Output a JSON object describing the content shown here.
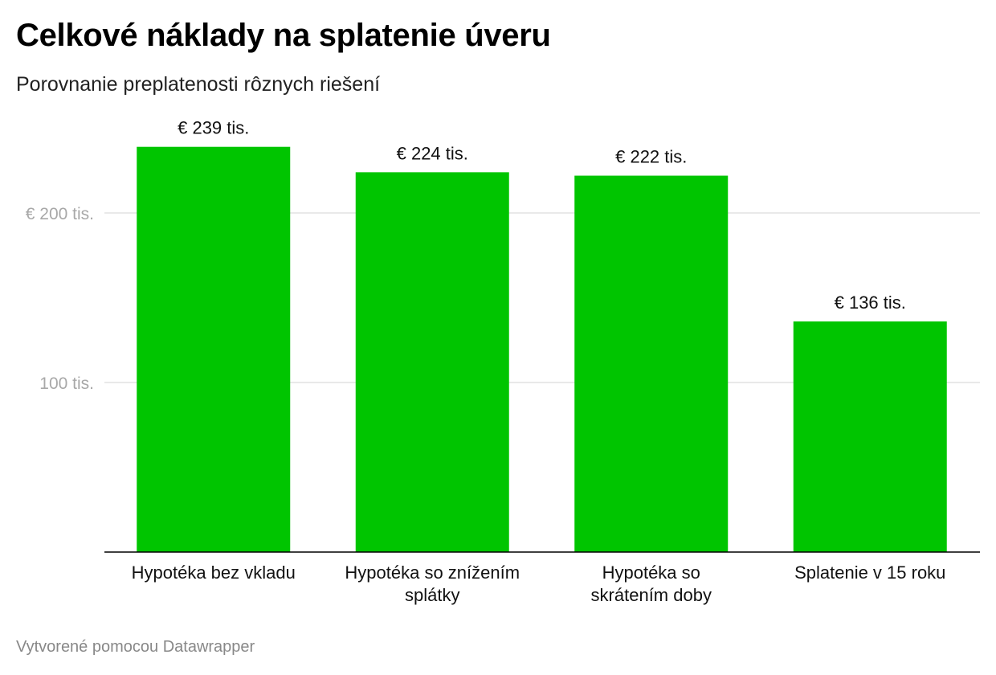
{
  "header": {
    "title": "Celkové náklady na splatenie úveru",
    "subtitle": "Porovnanie preplatenosti rôznych riešení"
  },
  "footer": {
    "credit": "Vytvorené pomocou Datawrapper"
  },
  "chart_data": {
    "type": "bar",
    "categories": [
      "Hypotéka bez vkladu",
      "Hypotéka so znížením splátky",
      "Hypotéka so skrátením doby",
      "Splatenie v 15 roku"
    ],
    "category_lines": [
      [
        "Hypotéka bez vkladu"
      ],
      [
        "Hypotéka so znížením",
        "splátky"
      ],
      [
        "Hypotéka so",
        "skrátením doby"
      ],
      [
        "Splatenie v 15 roku"
      ]
    ],
    "values": [
      239,
      224,
      222,
      136
    ],
    "value_labels": [
      "€ 239 tis.",
      "€ 224 tis.",
      "€ 222 tis.",
      "€ 136 tis."
    ],
    "unit": "tis. €",
    "ylim": [
      0,
      250
    ],
    "yticks": [
      {
        "value": 200,
        "label": "€ 200 tis."
      },
      {
        "value": 100,
        "label": "100 tis."
      }
    ],
    "grid": true,
    "bar_color": "#00c500",
    "xlabel": "",
    "ylabel": ""
  }
}
